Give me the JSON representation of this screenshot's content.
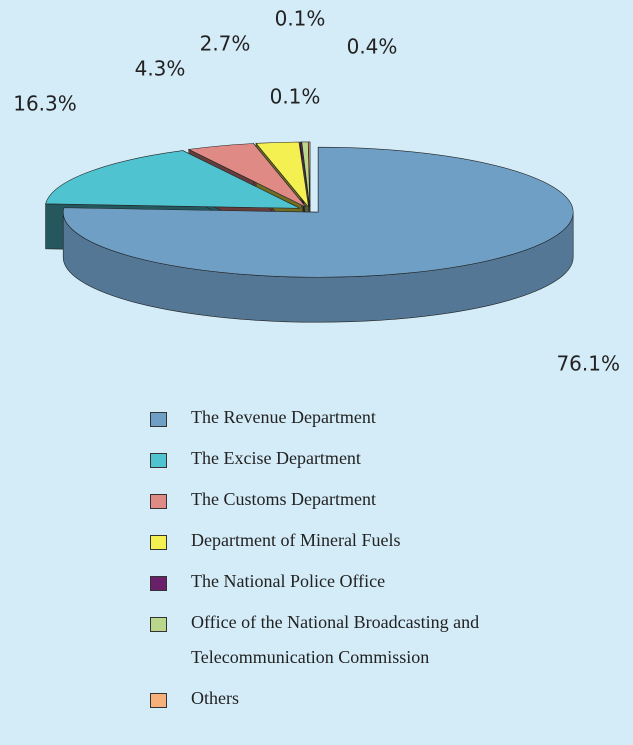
{
  "chart_data": {
    "type": "pie",
    "categories": [
      "The Revenue Department",
      "The Excise Department",
      "The Customs Department",
      "Department of Mineral Fuels",
      "The National Police Office",
      "Office of the National Broadcasting and Telecommunication Commission",
      "Others"
    ],
    "values": [
      76.1,
      16.3,
      4.3,
      2.7,
      0.1,
      0.4,
      0.1
    ],
    "value_labels": [
      "76.1%",
      "16.3%",
      "4.3%",
      "2.7%",
      "0.1%",
      "0.4%",
      "0.1%"
    ],
    "colors": [
      "#6f9fc5",
      "#4fc3d0",
      "#e08a86",
      "#f4f052",
      "#6a1f6b",
      "#b9d68a",
      "#f7b07a"
    ]
  }
}
